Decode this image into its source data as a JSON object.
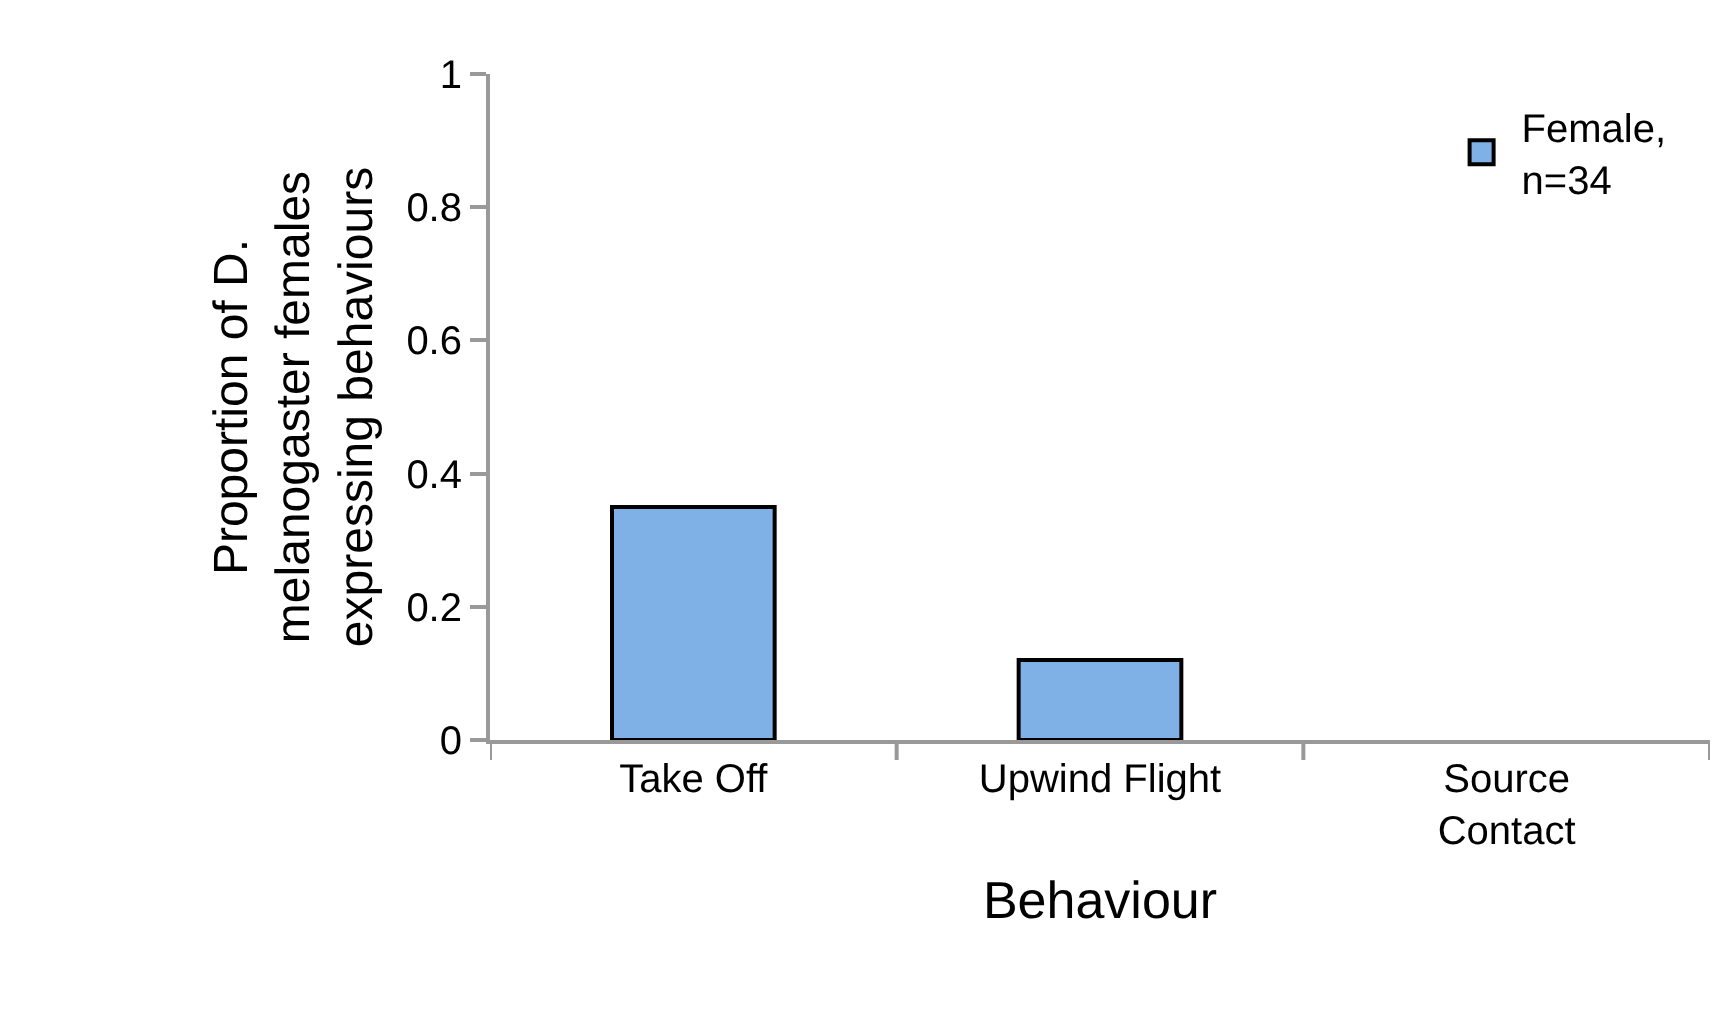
{
  "chart_data": {
    "type": "bar",
    "xlabel": "Behaviour",
    "ylabel": "Proportion of D.\nmelanogaster females\nexpressing behaviours",
    "categories": [
      "Take Off",
      "Upwind Flight",
      "Source\nContact"
    ],
    "series": [
      {
        "name": "Female,\nn=34",
        "color": "#7fb0e6",
        "values": [
          0.35,
          0.12,
          0
        ]
      }
    ],
    "ylim": [
      0,
      1
    ],
    "yticks": [
      0,
      0.2,
      0.4,
      0.6,
      0.8,
      1
    ],
    "legend": "top right"
  }
}
